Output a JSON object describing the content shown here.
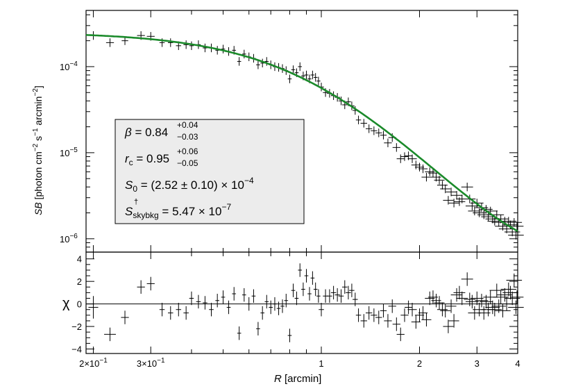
{
  "chart_data": [
    {
      "type": "scatter",
      "panel": "top",
      "x_scale": "log",
      "y_scale": "log",
      "xlim": [
        0.19,
        4.0
      ],
      "ylim": [
        7e-07,
        0.00045
      ],
      "ylabel": {
        "var": "SB",
        "open": " [photon cm",
        "exp1": "−2",
        "mid1": " s",
        "exp2": "−1",
        "mid2": " arcmin",
        "exp3": "−2",
        "close": "]"
      },
      "y_ticks": [
        {
          "value": 1e-06,
          "mant": "10",
          "exp": "−6"
        },
        {
          "value": 1e-05,
          "mant": "10",
          "exp": "−5"
        },
        {
          "value": 0.0001,
          "mant": "10",
          "exp": "−4"
        }
      ],
      "model": {
        "name": "beta model",
        "color": "#1a8a2a",
        "beta": 0.84,
        "rc": 0.95,
        "S0": 0.000252,
        "skybkg": 5.47e-07
      },
      "points": [
        [
          0.2,
          0.00023,
          0.01
        ],
        [
          0.225,
          0.00019,
          0.012
        ],
        [
          0.25,
          0.0002,
          0.01
        ],
        [
          0.28,
          0.00023,
          0.012
        ],
        [
          0.3,
          0.000225,
          0.012
        ],
        [
          0.325,
          0.00019,
          0.008
        ],
        [
          0.345,
          0.00019,
          0.008
        ],
        [
          0.365,
          0.000175,
          0.008
        ],
        [
          0.385,
          0.00018,
          0.008
        ],
        [
          0.4,
          0.000175,
          0.007
        ],
        [
          0.42,
          0.00018,
          0.007
        ],
        [
          0.44,
          0.000165,
          0.007
        ],
        [
          0.46,
          0.000165,
          0.007
        ],
        [
          0.48,
          0.000155,
          0.006
        ],
        [
          0.5,
          0.00016,
          0.006
        ],
        [
          0.52,
          0.00015,
          0.006
        ],
        [
          0.54,
          0.000155,
          0.006
        ],
        [
          0.56,
          0.000115,
          0.006
        ],
        [
          0.58,
          0.00014,
          0.006
        ],
        [
          0.6,
          0.00013,
          0.006
        ],
        [
          0.62,
          0.000125,
          0.006
        ],
        [
          0.64,
          0.000105,
          0.006
        ],
        [
          0.66,
          0.00011,
          0.006
        ],
        [
          0.68,
          0.000115,
          0.006
        ],
        [
          0.7,
          0.000105,
          0.006
        ],
        [
          0.72,
          0.0001,
          0.006
        ],
        [
          0.74,
          9.8e-05,
          0.006
        ],
        [
          0.76,
          9.5e-05,
          0.006
        ],
        [
          0.78,
          9e-05,
          0.006
        ],
        [
          0.8,
          7.2e-05,
          0.006
        ],
        [
          0.82,
          9.2e-05,
          0.006
        ],
        [
          0.84,
          8.5e-05,
          0.006
        ],
        [
          0.86,
          0.0001,
          0.006
        ],
        [
          0.88,
          7.8e-05,
          0.006
        ],
        [
          0.9,
          8e-05,
          0.006
        ],
        [
          0.92,
          7.2e-05,
          0.006
        ],
        [
          0.94,
          8e-05,
          0.006
        ],
        [
          0.96,
          7.5e-05,
          0.006
        ],
        [
          0.98,
          6.8e-05,
          0.006
        ],
        [
          1.0,
          5.8e-05,
          0.008
        ],
        [
          1.03,
          5e-05,
          0.008
        ],
        [
          1.06,
          4.9e-05,
          0.008
        ],
        [
          1.09,
          4.6e-05,
          0.008
        ],
        [
          1.12,
          4.4e-05,
          0.008
        ],
        [
          1.15,
          4e-05,
          0.008
        ],
        [
          1.18,
          3.6e-05,
          0.008
        ],
        [
          1.21,
          3.9e-05,
          0.008
        ],
        [
          1.24,
          3.5e-05,
          0.008
        ],
        [
          1.27,
          3.1e-05,
          0.008
        ],
        [
          1.3,
          2.4e-05,
          0.008
        ],
        [
          1.35,
          2.2e-05,
          0.01
        ],
        [
          1.4,
          1.9e-05,
          0.01
        ],
        [
          1.45,
          1.8e-05,
          0.01
        ],
        [
          1.5,
          1.7e-05,
          0.01
        ],
        [
          1.55,
          1.6e-05,
          0.01
        ],
        [
          1.6,
          1.3e-05,
          0.012
        ],
        [
          1.65,
          1.5e-05,
          0.012
        ],
        [
          1.7,
          1.15e-05,
          0.012
        ],
        [
          1.75,
          8.5e-06,
          0.012
        ],
        [
          1.8,
          9e-06,
          0.012
        ],
        [
          1.85,
          9.2e-06,
          0.012
        ],
        [
          1.9,
          8.5e-06,
          0.014
        ],
        [
          1.95,
          7.2e-06,
          0.014
        ],
        [
          2.0,
          6.8e-06,
          0.014
        ],
        [
          2.05,
          6.5e-06,
          0.014
        ],
        [
          2.1,
          5.2e-06,
          0.015
        ],
        [
          2.15,
          6e-06,
          0.015
        ],
        [
          2.2,
          5.8e-06,
          0.015
        ],
        [
          2.25,
          5.2e-06,
          0.015
        ],
        [
          2.3,
          4.8e-06,
          0.016
        ],
        [
          2.35,
          4.2e-06,
          0.016
        ],
        [
          2.4,
          3.8e-06,
          0.016
        ],
        [
          2.45,
          2.8e-06,
          0.016
        ],
        [
          2.5,
          3.5e-06,
          0.016
        ],
        [
          2.55,
          2.6e-06,
          0.016
        ],
        [
          2.6,
          3.2e-06,
          0.018
        ],
        [
          2.65,
          2.7e-06,
          0.018
        ],
        [
          2.7,
          2.9e-06,
          0.018
        ],
        [
          2.8,
          4e-06,
          0.018
        ],
        [
          2.85,
          2.9e-06,
          0.018
        ],
        [
          2.9,
          2.4e-06,
          0.02
        ],
        [
          2.95,
          2.1e-06,
          0.02
        ],
        [
          3.0,
          2.6e-06,
          0.02
        ],
        [
          3.05,
          2e-06,
          0.02
        ],
        [
          3.1,
          2.3e-06,
          0.02
        ],
        [
          3.15,
          1.9e-06,
          0.02
        ],
        [
          3.2,
          2.2e-06,
          0.02
        ],
        [
          3.25,
          1.8e-06,
          0.022
        ],
        [
          3.3,
          2.1e-06,
          0.022
        ],
        [
          3.35,
          1.7e-06,
          0.022
        ],
        [
          3.4,
          1.6e-06,
          0.022
        ],
        [
          3.45,
          1.9e-06,
          0.022
        ],
        [
          3.5,
          1.55e-06,
          0.022
        ],
        [
          3.55,
          1.7e-06,
          0.024
        ],
        [
          3.6,
          1.4e-06,
          0.024
        ],
        [
          3.65,
          1.6e-06,
          0.024
        ],
        [
          3.7,
          1.3e-06,
          0.024
        ],
        [
          3.75,
          1.6e-06,
          0.024
        ],
        [
          3.8,
          1.45e-06,
          0.024
        ],
        [
          3.85,
          1.2e-06,
          0.024
        ],
        [
          3.9,
          1.55e-06,
          0.024
        ],
        [
          3.95,
          1.1e-06,
          0.024
        ],
        [
          3.98,
          1.4e-06,
          0.02
        ]
      ],
      "annotation": {
        "beta_label": "β",
        "beta_value": " = 0.84",
        "beta_up": "+0.04",
        "beta_down": "−0.03",
        "rc_label": "r",
        "rc_sub": "c",
        "rc_value": " = 0.95",
        "rc_up": "+0.06",
        "rc_down": "−0.05",
        "s0_label": "S",
        "s0_sub": "0",
        "s0_value": " = (2.52 ± 0.10) × 10",
        "s0_exp": "−4",
        "sky_label": "S",
        "sky_sup": "†",
        "sky_sub": "skybkg",
        "sky_value": " = 5.47 × 10",
        "sky_exp": "−7"
      }
    },
    {
      "type": "scatter",
      "panel": "bottom",
      "x_scale": "log",
      "xlim": [
        0.19,
        4.0
      ],
      "ylim": [
        -4.4,
        4.6
      ],
      "ylabel": "χ",
      "xlabel_var": "R",
      "xlabel_unit": " [arcmin]",
      "y_ticks": [
        -4,
        -2,
        0,
        2,
        4
      ],
      "x_ticks": [
        {
          "value": 0.2,
          "mant": "2×10",
          "exp": "−1"
        },
        {
          "value": 0.3,
          "mant": "3×10",
          "exp": "−1"
        },
        {
          "value": 1,
          "mant": "1",
          "exp": ""
        },
        {
          "value": 2,
          "mant": "2",
          "exp": ""
        },
        {
          "value": 3,
          "mant": "3",
          "exp": ""
        },
        {
          "value": 4,
          "mant": "4",
          "exp": ""
        }
      ],
      "points": [
        [
          0.2,
          -0.3,
          0.015,
          1.0
        ],
        [
          0.225,
          -2.7,
          0.018,
          0.6
        ],
        [
          0.25,
          -1.2,
          0.012,
          0.6
        ],
        [
          0.28,
          1.5,
          0.012,
          0.6
        ],
        [
          0.3,
          1.8,
          0.012,
          0.6
        ],
        [
          0.325,
          -0.5,
          0.008,
          0.6
        ],
        [
          0.345,
          -0.8,
          0.008,
          0.6
        ],
        [
          0.365,
          -0.5,
          0.008,
          0.6
        ],
        [
          0.385,
          -0.8,
          0.008,
          0.6
        ],
        [
          0.4,
          0.5,
          0.007,
          0.6
        ],
        [
          0.42,
          0.2,
          0.007,
          0.6
        ],
        [
          0.44,
          0.1,
          0.007,
          0.6
        ],
        [
          0.46,
          -0.5,
          0.007,
          0.6
        ],
        [
          0.48,
          0.3,
          0.006,
          0.6
        ],
        [
          0.5,
          0.6,
          0.006,
          0.6
        ],
        [
          0.52,
          -0.3,
          0.006,
          0.6
        ],
        [
          0.54,
          0.9,
          0.006,
          0.6
        ],
        [
          0.56,
          -2.6,
          0.006,
          0.6
        ],
        [
          0.58,
          0.8,
          0.006,
          0.6
        ],
        [
          0.6,
          0.0,
          0.006,
          0.6
        ],
        [
          0.62,
          0.7,
          0.006,
          0.6
        ],
        [
          0.64,
          -2.2,
          0.006,
          0.6
        ],
        [
          0.66,
          -0.8,
          0.006,
          0.6
        ],
        [
          0.68,
          0.2,
          0.006,
          0.6
        ],
        [
          0.7,
          -0.3,
          0.006,
          0.6
        ],
        [
          0.72,
          0.0,
          0.006,
          0.6
        ],
        [
          0.74,
          -0.4,
          0.006,
          0.6
        ],
        [
          0.76,
          -0.2,
          0.006,
          0.6
        ],
        [
          0.78,
          0.3,
          0.006,
          0.6
        ],
        [
          0.8,
          -2.8,
          0.006,
          0.6
        ],
        [
          0.82,
          1.2,
          0.006,
          0.6
        ],
        [
          0.84,
          0.5,
          0.006,
          0.6
        ],
        [
          0.86,
          3.0,
          0.006,
          0.6
        ],
        [
          0.88,
          1.3,
          0.006,
          0.6
        ],
        [
          0.9,
          2.5,
          0.006,
          0.6
        ],
        [
          0.92,
          0.9,
          0.006,
          0.6
        ],
        [
          0.94,
          2.3,
          0.006,
          0.6
        ],
        [
          0.96,
          1.3,
          0.006,
          0.6
        ],
        [
          0.98,
          0.7,
          0.006,
          0.6
        ],
        [
          1.0,
          -0.5,
          0.008,
          0.6
        ],
        [
          1.03,
          0.7,
          0.008,
          0.6
        ],
        [
          1.06,
          0.7,
          0.008,
          0.6
        ],
        [
          1.09,
          1.0,
          0.008,
          0.6
        ],
        [
          1.12,
          0.8,
          0.008,
          0.6
        ],
        [
          1.15,
          0.7,
          0.008,
          0.6
        ],
        [
          1.18,
          1.5,
          0.008,
          0.6
        ],
        [
          1.21,
          1.0,
          0.008,
          0.6
        ],
        [
          1.24,
          1.2,
          0.008,
          0.6
        ],
        [
          1.27,
          0.4,
          0.008,
          0.6
        ],
        [
          1.3,
          -1.0,
          0.008,
          0.6
        ],
        [
          1.35,
          -1.5,
          0.01,
          0.6
        ],
        [
          1.4,
          -0.8,
          0.01,
          0.6
        ],
        [
          1.45,
          -1.0,
          0.01,
          0.6
        ],
        [
          1.5,
          -1.2,
          0.01,
          0.6
        ],
        [
          1.55,
          -0.6,
          0.01,
          0.6
        ],
        [
          1.6,
          -1.5,
          0.012,
          0.6
        ],
        [
          1.65,
          -0.2,
          0.012,
          0.6
        ],
        [
          1.7,
          -1.8,
          0.012,
          0.6
        ],
        [
          1.75,
          -2.7,
          0.012,
          0.6
        ],
        [
          1.8,
          -1.0,
          0.012,
          0.6
        ],
        [
          1.85,
          -0.3,
          0.012,
          0.6
        ],
        [
          1.9,
          -0.5,
          0.014,
          0.6
        ],
        [
          1.95,
          -1.6,
          0.014,
          0.6
        ],
        [
          2.0,
          -1.0,
          0.014,
          0.6
        ],
        [
          2.05,
          -0.8,
          0.014,
          0.6
        ],
        [
          2.1,
          -1.4,
          0.015,
          0.6
        ],
        [
          2.15,
          0.5,
          0.015,
          0.6
        ],
        [
          2.2,
          0.6,
          0.015,
          0.6
        ],
        [
          2.25,
          0.3,
          0.015,
          0.6
        ],
        [
          2.3,
          0.1,
          0.016,
          0.6
        ],
        [
          2.35,
          -0.5,
          0.016,
          0.6
        ],
        [
          2.4,
          -0.6,
          0.016,
          0.6
        ],
        [
          2.45,
          -2.0,
          0.016,
          0.6
        ],
        [
          2.5,
          -0.2,
          0.016,
          0.6
        ],
        [
          2.55,
          -1.5,
          0.016,
          0.6
        ],
        [
          2.6,
          0.8,
          0.018,
          0.6
        ],
        [
          2.65,
          1.0,
          0.018,
          0.6
        ],
        [
          2.7,
          0.5,
          0.018,
          0.6
        ],
        [
          2.8,
          2.2,
          0.018,
          0.6
        ],
        [
          2.85,
          0.4,
          0.018,
          0.6
        ],
        [
          2.9,
          0.2,
          0.02,
          0.6
        ],
        [
          2.95,
          -0.8,
          0.02,
          0.6
        ],
        [
          3.0,
          0.5,
          0.02,
          0.6
        ],
        [
          3.05,
          -0.5,
          0.02,
          0.6
        ],
        [
          3.1,
          0.3,
          0.02,
          0.6
        ],
        [
          3.15,
          -0.8,
          0.02,
          0.6
        ],
        [
          3.2,
          0.2,
          0.02,
          0.6
        ],
        [
          3.25,
          -0.5,
          0.022,
          0.6
        ],
        [
          3.3,
          0.6,
          0.022,
          0.6
        ],
        [
          3.35,
          -0.3,
          0.022,
          0.6
        ],
        [
          3.4,
          -0.5,
          0.022,
          0.6
        ],
        [
          3.45,
          1.2,
          0.022,
          0.6
        ],
        [
          3.5,
          -0.2,
          0.022,
          0.6
        ],
        [
          3.55,
          0.6,
          0.024,
          0.6
        ],
        [
          3.6,
          -0.6,
          0.024,
          0.6
        ],
        [
          3.65,
          0.8,
          0.024,
          0.6
        ],
        [
          3.7,
          0.0,
          0.024,
          0.6
        ],
        [
          3.75,
          1.3,
          0.024,
          0.6
        ],
        [
          3.8,
          1.0,
          0.024,
          0.6
        ],
        [
          3.85,
          0.5,
          0.024,
          0.6
        ],
        [
          3.9,
          2.1,
          0.024,
          0.6
        ],
        [
          3.95,
          -0.3,
          0.024,
          0.6
        ],
        [
          3.98,
          0.6,
          0.02,
          0.6
        ]
      ]
    }
  ]
}
